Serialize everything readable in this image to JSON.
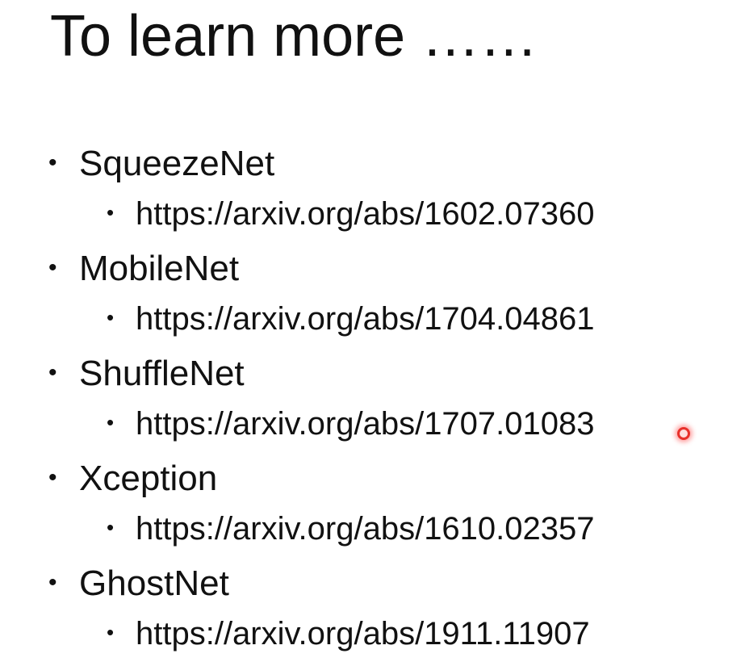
{
  "slide": {
    "title": "To learn more ……",
    "bullet_glyph": "•",
    "items": [
      {
        "name": "SqueezeNet",
        "link": "https://arxiv.org/abs/1602.07360"
      },
      {
        "name": "MobileNet",
        "link": "https://arxiv.org/abs/1704.04861"
      },
      {
        "name": "ShuffleNet",
        "link": "https://arxiv.org/abs/1707.01083"
      },
      {
        "name": "Xception",
        "link": "https://arxiv.org/abs/1610.02357"
      },
      {
        "name": "GhostNet",
        "link": "https://arxiv.org/abs/1911.11907"
      }
    ]
  },
  "colors": {
    "text": "#111111",
    "background": "#ffffff",
    "pointer": "#e8302a"
  }
}
